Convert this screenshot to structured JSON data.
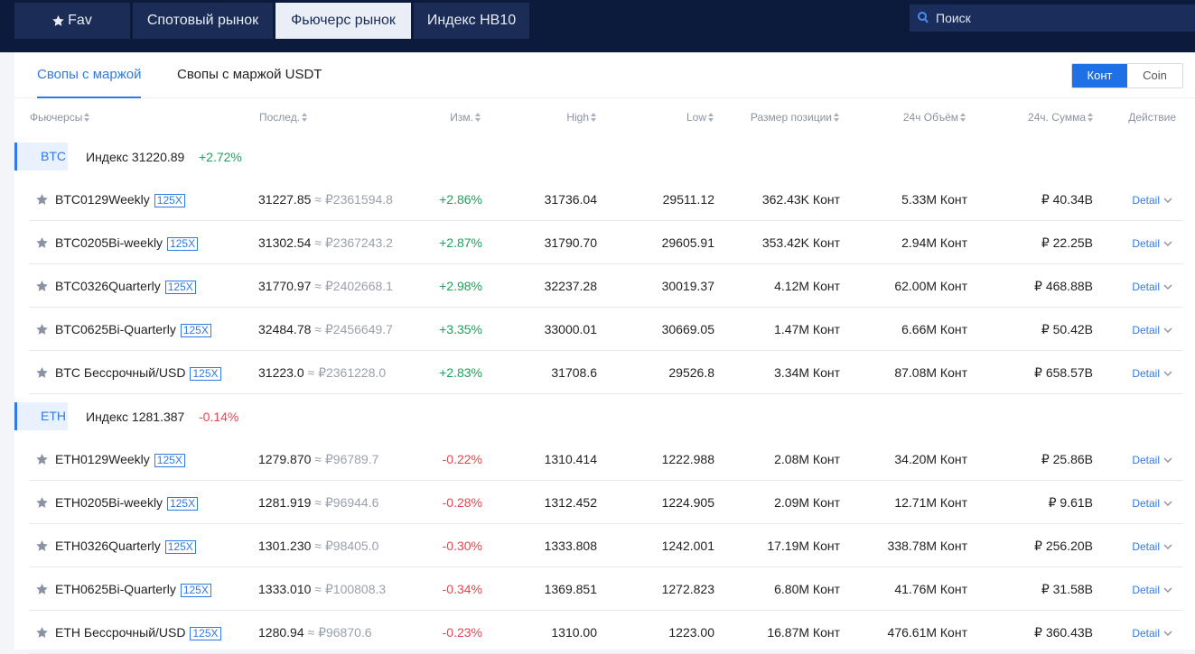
{
  "nav": {
    "tabs": [
      "Fav",
      "Спотовый рынок",
      "Фьючерс рынок",
      "Индекс HB10"
    ],
    "active": 2,
    "search": "Поиск"
  },
  "subtabs": {
    "items": [
      "Свопы с маржой",
      "Свопы с маржой USDT"
    ],
    "active": 0
  },
  "toggle": {
    "items": [
      "Конт",
      "Coin"
    ],
    "active": 0
  },
  "columns": [
    "Фьючерсы",
    "Послед.",
    "Изм.",
    "High",
    "Low",
    "Размер позиции",
    "24ч Объём",
    "24ч. Сумма",
    "Действие"
  ],
  "groups": [
    {
      "coin": "BTC",
      "index_label": "Индекс",
      "index": "31220.89",
      "change": "+2.72%",
      "rows": [
        {
          "name": "BTC0129Weekly",
          "leverage": "125X",
          "last": "31227.85",
          "approx": "≈ ₽2361594.8",
          "change": "+2.86%",
          "high": "31736.04",
          "low": "29511.12",
          "position": "362.43K Конт",
          "volume": "5.33M Конт",
          "sum": "₽ 40.34B",
          "action": "Detail"
        },
        {
          "name": "BTC0205Bi-weekly",
          "leverage": "125X",
          "last": "31302.54",
          "approx": "≈ ₽2367243.2",
          "change": "+2.87%",
          "high": "31790.70",
          "low": "29605.91",
          "position": "353.42K Конт",
          "volume": "2.94M Конт",
          "sum": "₽ 22.25B",
          "action": "Detail"
        },
        {
          "name": "BTC0326Quarterly",
          "leverage": "125X",
          "last": "31770.97",
          "approx": "≈ ₽2402668.1",
          "change": "+2.98%",
          "high": "32237.28",
          "low": "30019.37",
          "position": "4.12M Конт",
          "volume": "62.00M Конт",
          "sum": "₽ 468.88B",
          "action": "Detail"
        },
        {
          "name": "BTC0625Bi-Quarterly",
          "leverage": "125X",
          "last": "32484.78",
          "approx": "≈ ₽2456649.7",
          "change": "+3.35%",
          "high": "33000.01",
          "low": "30669.05",
          "position": "1.47M Конт",
          "volume": "6.66M Конт",
          "sum": "₽ 50.42B",
          "action": "Detail"
        },
        {
          "name": "BTC Бессрочный/USD",
          "leverage": "125X",
          "last": "31223.0",
          "approx": "≈ ₽2361228.0",
          "change": "+2.83%",
          "high": "31708.6",
          "low": "29526.8",
          "position": "3.34M Конт",
          "volume": "87.08M Конт",
          "sum": "₽ 658.57B",
          "action": "Detail"
        }
      ]
    },
    {
      "coin": "ETH",
      "index_label": "Индекс",
      "index": "1281.387",
      "change": "-0.14%",
      "rows": [
        {
          "name": "ETH0129Weekly",
          "leverage": "125X",
          "last": "1279.870",
          "approx": "≈ ₽96789.7",
          "change": "-0.22%",
          "high": "1310.414",
          "low": "1222.988",
          "position": "2.08M Конт",
          "volume": "34.20M Конт",
          "sum": "₽ 25.86B",
          "action": "Detail"
        },
        {
          "name": "ETH0205Bi-weekly",
          "leverage": "125X",
          "last": "1281.919",
          "approx": "≈ ₽96944.6",
          "change": "-0.28%",
          "high": "1312.452",
          "low": "1224.905",
          "position": "2.09M Конт",
          "volume": "12.71M Конт",
          "sum": "₽ 9.61B",
          "action": "Detail"
        },
        {
          "name": "ETH0326Quarterly",
          "leverage": "125X",
          "last": "1301.230",
          "approx": "≈ ₽98405.0",
          "change": "-0.30%",
          "high": "1333.808",
          "low": "1242.001",
          "position": "17.19M Конт",
          "volume": "338.78M Конт",
          "sum": "₽ 256.20B",
          "action": "Detail"
        },
        {
          "name": "ETH0625Bi-Quarterly",
          "leverage": "125X",
          "last": "1333.010",
          "approx": "≈ ₽100808.3",
          "change": "-0.34%",
          "high": "1369.851",
          "low": "1272.823",
          "position": "6.80M Конт",
          "volume": "41.76M Конт",
          "sum": "₽ 31.58B",
          "action": "Detail"
        },
        {
          "name": "ETH Бессрочный/USD",
          "leverage": "125X",
          "last": "1280.94",
          "approx": "≈ ₽96870.6",
          "change": "-0.23%",
          "high": "1310.00",
          "low": "1223.00",
          "position": "16.87M Конт",
          "volume": "476.61M Конт",
          "sum": "₽ 360.43B",
          "action": "Detail"
        }
      ]
    }
  ]
}
